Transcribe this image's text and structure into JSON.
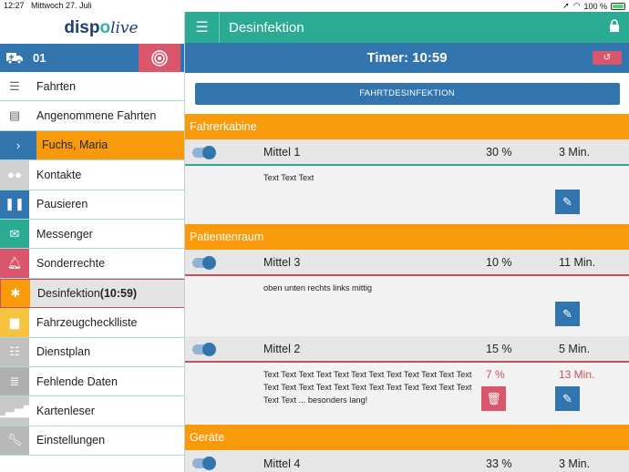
{
  "status": {
    "time": "12:27",
    "date": "Mittwoch 27. Juli",
    "battery": "100 %"
  },
  "sidebar": {
    "logo": {
      "part1": "disp",
      "part2": "o",
      "part3": "live"
    },
    "vehicle": {
      "number": "01"
    },
    "items": [
      {
        "label": "Fahrten",
        "color": "#ffffff",
        "icon": "list-icon"
      },
      {
        "label": "Angenommene Fahrten",
        "color": "#ffffff",
        "icon": "id-card-icon"
      },
      {
        "label": "Fuchs, Maria",
        "color": "#f99a0a",
        "icon": "chevron-right-icon"
      },
      {
        "label": "Kontakte",
        "color": "#d0d0d0",
        "icon": "people-icon"
      },
      {
        "label": "Pausieren",
        "color": "#3274ad",
        "icon": "pause-icon"
      },
      {
        "label": "Messenger",
        "color": "#2baa94",
        "icon": "envelope-icon"
      },
      {
        "label": "Sonderrechte",
        "color": "#d9566d",
        "icon": "bell-icon"
      },
      {
        "label": "Desinfektion (10:59)",
        "color": "#f99a0a",
        "icon": "bug-icon"
      },
      {
        "label": "Fahrzeugchecklliste",
        "color": "#f6c341",
        "icon": "checklist-icon"
      },
      {
        "label": "Dienstplan",
        "color": "#c0c0c0",
        "icon": "calendar-list-icon"
      },
      {
        "label": "Fehlende Daten",
        "color": "#b0b0b0",
        "icon": "database-icon"
      },
      {
        "label": "Kartenleser",
        "color": "#c8c8c8",
        "icon": "signal-icon"
      },
      {
        "label": "Einstellungen",
        "color": "#b8b8b8",
        "icon": "wrench-icon"
      }
    ]
  },
  "header": {
    "title": "Desinfektion"
  },
  "timer": {
    "label": "Timer: 10:59"
  },
  "action_button": {
    "label": "FAHRTDESINFEKTION"
  },
  "sections": [
    {
      "title": "Fahrerkabine",
      "entries": [
        {
          "name": "Mittel 1",
          "percent": "30 %",
          "minutes": "3 Min.",
          "note": "Text Text Text",
          "line": "green"
        }
      ]
    },
    {
      "title": "Patientenraum",
      "entries": [
        {
          "name": "Mittel 3",
          "percent": "10 %",
          "minutes": "11 Min.",
          "note": "oben unten rechts links mittig",
          "line": "red"
        },
        {
          "name": "Mittel 2",
          "percent": "15 %",
          "minutes": "5 Min.",
          "note": "Text Text Text Text Text Text Text Text Text Text Text Text Text Text Text Text Text Text Text Text Text Text Text Text Text Text ... besonders lang!",
          "detail_percent": "7 %",
          "detail_minutes": "13 Min.",
          "line": "red"
        }
      ]
    },
    {
      "title": "Geräte",
      "entries": [
        {
          "name": "Mittel 4",
          "percent": "33 %",
          "minutes": "3 Min."
        }
      ]
    }
  ]
}
